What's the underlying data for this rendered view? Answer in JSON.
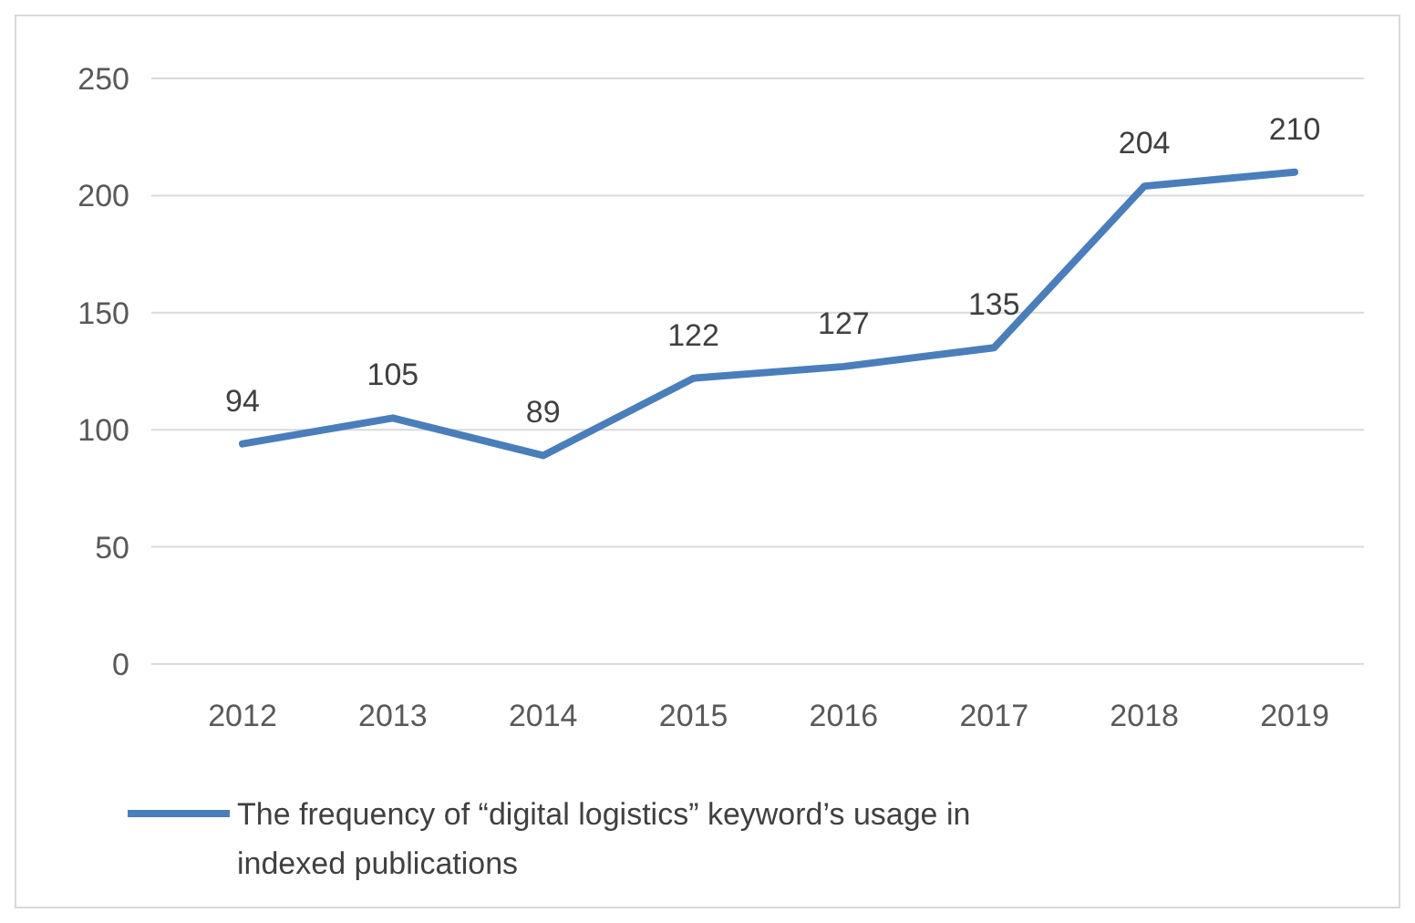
{
  "chart_data": {
    "type": "line",
    "categories": [
      "2012",
      "2013",
      "2014",
      "2015",
      "2016",
      "2017",
      "2018",
      "2019"
    ],
    "series": [
      {
        "name": "The frequency of “digital logistics” keyword’s usage in indexed publications",
        "color": "#4a7ebb",
        "values": [
          94,
          105,
          89,
          122,
          127,
          135,
          204,
          210
        ]
      }
    ],
    "ylim": [
      0,
      250
    ],
    "yticks": [
      0,
      50,
      100,
      150,
      200,
      250
    ],
    "grid": "y",
    "data_labels": true,
    "legend": "bottom",
    "marker": "none",
    "line_style": "solid"
  }
}
